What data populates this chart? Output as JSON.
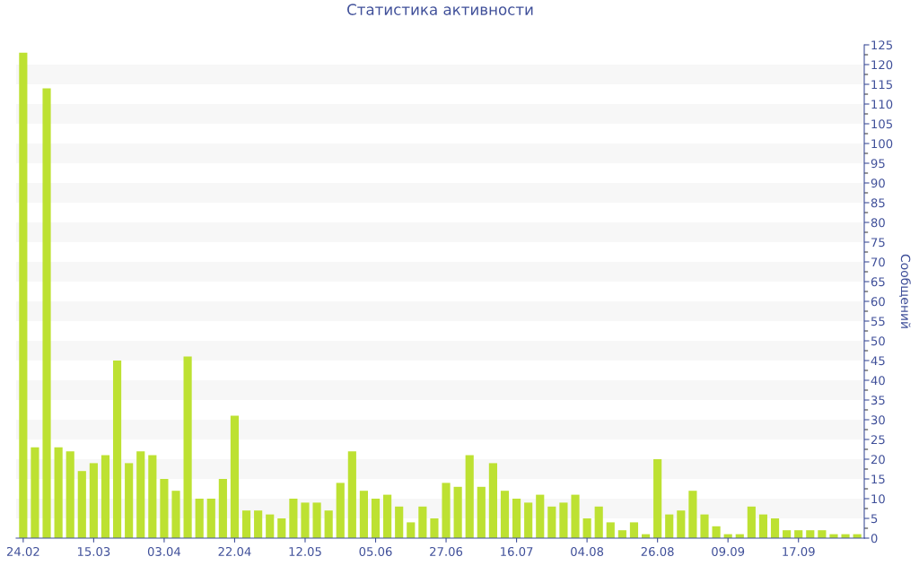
{
  "chart_data": {
    "type": "bar",
    "title": "Статистика активности",
    "ylabel": "Сообщений",
    "color": "#bde132",
    "categories": [
      "24.02",
      null,
      null,
      null,
      null,
      null,
      "15.03",
      null,
      null,
      null,
      null,
      null,
      "03.04",
      null,
      null,
      null,
      null,
      null,
      "22.04",
      null,
      null,
      null,
      null,
      null,
      "12.05",
      null,
      null,
      null,
      null,
      null,
      "05.06",
      null,
      null,
      null,
      null,
      null,
      "27.06",
      null,
      null,
      null,
      null,
      null,
      "16.07",
      null,
      null,
      null,
      null,
      null,
      "04.08",
      null,
      null,
      null,
      null,
      null,
      "26.08",
      null,
      null,
      null,
      null,
      null,
      "09.09",
      null,
      null,
      null,
      null,
      null,
      "17.09",
      null,
      null,
      null,
      null,
      null
    ],
    "values": [
      123,
      23,
      114,
      23,
      22,
      17,
      19,
      21,
      45,
      19,
      22,
      21,
      15,
      12,
      46,
      10,
      10,
      15,
      31,
      7,
      7,
      6,
      5,
      10,
      9,
      9,
      7,
      14,
      22,
      12,
      10,
      11,
      8,
      4,
      8,
      5,
      14,
      13,
      21,
      13,
      19,
      12,
      10,
      9,
      11,
      8,
      9,
      11,
      5,
      8,
      4,
      2,
      4,
      1,
      20,
      6,
      7,
      12,
      6,
      3,
      1,
      1,
      8,
      6,
      5,
      2,
      2,
      2,
      2,
      1,
      1,
      1
    ],
    "ylim": [
      0,
      125
    ],
    "yticks": [
      0,
      5,
      10,
      15,
      20,
      25,
      30,
      35,
      40,
      45,
      50,
      55,
      60,
      65,
      70,
      75,
      80,
      85,
      90,
      95,
      100,
      105,
      110,
      115,
      120,
      125
    ],
    "bands": [
      {
        "axis": "y",
        "from": 5,
        "to": 10,
        "color": "#f7f7f7"
      },
      {
        "axis": "y",
        "from": 15,
        "to": 20,
        "color": "#f7f7f7"
      },
      {
        "axis": "y",
        "from": 25,
        "to": 30,
        "color": "#f7f7f7"
      },
      {
        "axis": "y",
        "from": 35,
        "to": 40,
        "color": "#f7f7f7"
      },
      {
        "axis": "y",
        "from": 45,
        "to": 50,
        "color": "#f7f7f7"
      },
      {
        "axis": "y",
        "from": 55,
        "to": 60,
        "color": "#f7f7f7"
      },
      {
        "axis": "y",
        "from": 65,
        "to": 70,
        "color": "#f7f7f7"
      },
      {
        "axis": "y",
        "from": 75,
        "to": 80,
        "color": "#f7f7f7"
      },
      {
        "axis": "y",
        "from": 85,
        "to": 90,
        "color": "#f7f7f7"
      },
      {
        "axis": "y",
        "from": 95,
        "to": 100,
        "color": "#f7f7f7"
      },
      {
        "axis": "y",
        "from": 105,
        "to": 110,
        "color": "#f7f7f7"
      },
      {
        "axis": "y",
        "from": 115,
        "to": 120,
        "color": "#f7f7f7"
      }
    ]
  }
}
